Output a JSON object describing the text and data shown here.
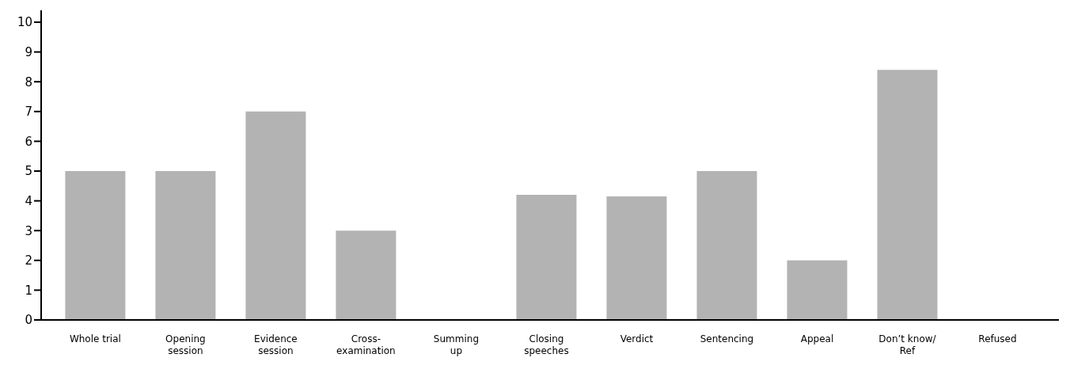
{
  "chart_data": {
    "type": "bar",
    "categories": [
      "Whole trial",
      "Opening\nsession",
      "Evidence\nsession",
      "Cross-\nexamination",
      "Summing\nup",
      "Closing\nspeeches",
      "Verdict",
      "Sentencing",
      "Appeal",
      "Don’t know/\nRef",
      "Refused"
    ],
    "values": [
      5,
      5,
      7,
      3,
      0,
      4.2,
      4.15,
      5,
      2,
      8.4,
      0
    ],
    "color": "#b3b3b3",
    "ylim": [
      0,
      10.4
    ],
    "yticks": [
      0,
      1,
      2,
      3,
      4,
      5,
      6,
      7,
      8,
      9,
      10
    ],
    "grid": false,
    "legend": false
  }
}
